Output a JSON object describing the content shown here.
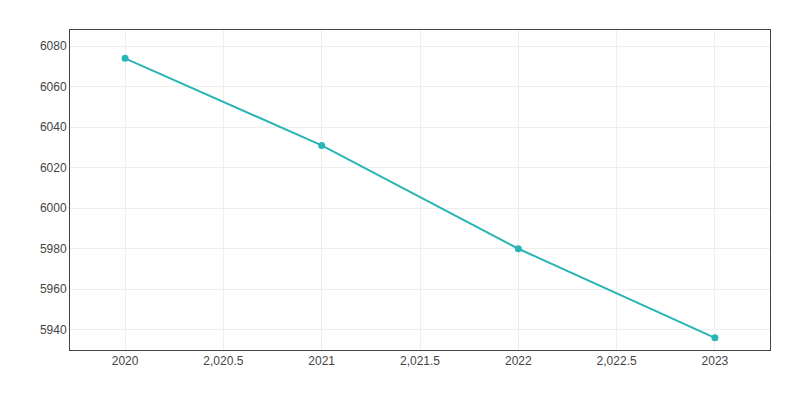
{
  "chart_data": {
    "type": "line",
    "x": [
      2020,
      2021,
      2022,
      2023
    ],
    "values": [
      6074,
      6031,
      5980,
      5936
    ],
    "color": "#29B5B5",
    "marker": "circle",
    "xlim": [
      2019.72,
      2023.28
    ],
    "xticks": [
      2020,
      {
        "value": 2020.5,
        "label": "2,020.5"
      },
      2021,
      {
        "value": 2021.5,
        "label": "2,021.5"
      },
      2022,
      {
        "value": 2022.5,
        "label": "2,022.5"
      },
      2023
    ],
    "ylim": [
      5930,
      6088
    ],
    "yticks": [
      5940,
      5960,
      5980,
      6000,
      6020,
      6040,
      6060,
      6080
    ],
    "grid": true
  }
}
